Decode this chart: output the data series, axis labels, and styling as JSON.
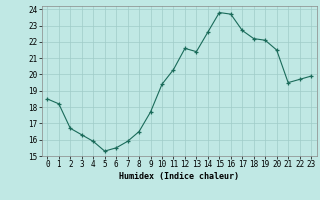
{
  "x": [
    0,
    1,
    2,
    3,
    4,
    5,
    6,
    7,
    8,
    9,
    10,
    11,
    12,
    13,
    14,
    15,
    16,
    17,
    18,
    19,
    20,
    21,
    22,
    23
  ],
  "y": [
    18.5,
    18.2,
    16.7,
    16.3,
    15.9,
    15.3,
    15.5,
    15.9,
    16.5,
    17.7,
    19.4,
    20.3,
    21.6,
    21.4,
    22.6,
    23.8,
    23.7,
    22.7,
    22.2,
    22.1,
    21.5,
    19.5,
    19.7,
    19.9
  ],
  "line_color": "#1a6b5a",
  "marker": "+",
  "bg_color": "#c0e8e4",
  "grid_color": "#a0ccc8",
  "xlabel": "Humidex (Indice chaleur)",
  "xlim": [
    -0.5,
    23.5
  ],
  "ylim": [
    15,
    24.2
  ],
  "yticks": [
    15,
    16,
    17,
    18,
    19,
    20,
    21,
    22,
    23,
    24
  ],
  "xticks": [
    0,
    1,
    2,
    3,
    4,
    5,
    6,
    7,
    8,
    9,
    10,
    11,
    12,
    13,
    14,
    15,
    16,
    17,
    18,
    19,
    20,
    21,
    22,
    23
  ],
  "label_fontsize": 6,
  "tick_fontsize": 5.5,
  "marker_size": 3,
  "line_width": 0.8,
  "markeredgewidth": 0.9
}
